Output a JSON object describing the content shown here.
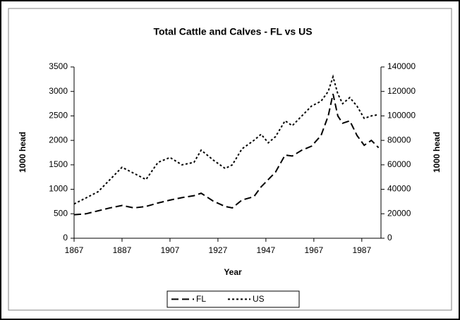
{
  "chart_data": {
    "type": "line",
    "title": "Total Cattle and Calves - FL vs US",
    "x_label": "Year",
    "y_label": "1000 head",
    "y2_label": "1000 head",
    "x": [
      1867,
      1872,
      1877,
      1882,
      1887,
      1892,
      1897,
      1902,
      1907,
      1912,
      1917,
      1920,
      1925,
      1930,
      1933,
      1937,
      1942,
      1945,
      1948,
      1951,
      1955,
      1958,
      1962,
      1966,
      1970,
      1973,
      1975,
      1977,
      1979,
      1982,
      1985,
      1988,
      1991,
      1994
    ],
    "series": [
      {
        "name": "FL",
        "color": "#000000",
        "dash": "10,5",
        "values": [
          480,
          500,
          560,
          620,
          670,
          620,
          650,
          720,
          780,
          830,
          870,
          920,
          760,
          650,
          620,
          780,
          850,
          1050,
          1200,
          1350,
          1700,
          1680,
          1800,
          1880,
          2100,
          2500,
          2950,
          2500,
          2350,
          2400,
          2100,
          1900,
          2000,
          1850
        ]
      },
      {
        "name": "US",
        "color": "#000000",
        "dash": "3,3",
        "axis": "y2",
        "values": [
          28000,
          33000,
          38000,
          48000,
          58000,
          53000,
          48000,
          62000,
          66000,
          60000,
          62000,
          72000,
          64000,
          57000,
          60000,
          73000,
          80000,
          85000,
          78000,
          83000,
          96000,
          92000,
          100000,
          108000,
          112000,
          120000,
          132000,
          118000,
          110000,
          115000,
          108000,
          98000,
          100000,
          101000
        ]
      }
    ],
    "xlim": [
      1867,
      1995
    ],
    "xticks": [
      1867,
      1887,
      1907,
      1927,
      1947,
      1967,
      1987
    ],
    "ylim": [
      0,
      3500
    ],
    "yticks": [
      0,
      500,
      1000,
      1500,
      2000,
      2500,
      3000,
      3500
    ],
    "y2lim": [
      0,
      140000
    ],
    "y2ticks": [
      0,
      20000,
      40000,
      60000,
      80000,
      100000,
      120000,
      140000
    ],
    "legend": "bottom"
  }
}
